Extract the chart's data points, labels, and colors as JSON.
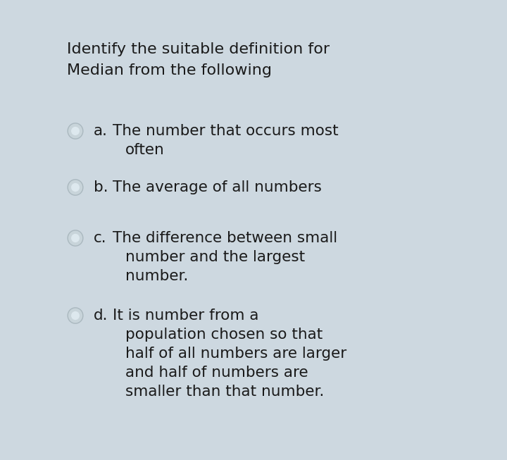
{
  "bg_outer": "#cdd8e0",
  "bg_card": "#dde8ee",
  "text_color": "#1a1a1a",
  "title_line1": "Identify the suitable definition for",
  "title_line2": "Median from the following",
  "title_fontsize": 16,
  "options": [
    {
      "label": "a.",
      "lines": [
        "The number that occurs most",
        "often"
      ]
    },
    {
      "label": "b.",
      "lines": [
        "The average of all numbers"
      ]
    },
    {
      "label": "c.",
      "lines": [
        "The difference between small",
        "number and the largest",
        "number."
      ]
    },
    {
      "label": "d.",
      "lines": [
        "It is number from a",
        "population chosen so that",
        "half of all numbers are larger",
        "and half of numbers are",
        "smaller than that number."
      ]
    }
  ],
  "option_fontsize": 15.5,
  "radio_face": "#c8d4da",
  "radio_inner": "#dde8ee",
  "radio_edge": "#aab8bf"
}
